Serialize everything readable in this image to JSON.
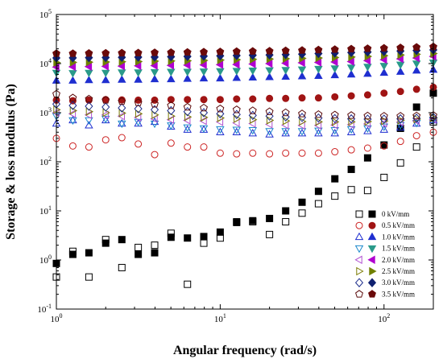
{
  "chart_data": {
    "type": "scatter",
    "title": "",
    "xlabel": "Angular frequency (rad/s)",
    "ylabel": "Storage & loss modulus (Pa)",
    "xscale": "log",
    "yscale": "log",
    "xlim": [
      1,
      200
    ],
    "ylim": [
      0.1,
      100000
    ],
    "xticks": [
      {
        "base": "10",
        "exp": "0"
      },
      {
        "base": "10",
        "exp": "1"
      },
      {
        "base": "10",
        "exp": "2"
      }
    ],
    "yticks": [
      {
        "base": "10",
        "exp": "-1"
      },
      {
        "base": "10",
        "exp": "0"
      },
      {
        "base": "10",
        "exp": "1"
      },
      {
        "base": "10",
        "exp": "2"
      },
      {
        "base": "10",
        "exp": "3"
      },
      {
        "base": "10",
        "exp": "4"
      },
      {
        "base": "10",
        "exp": "5"
      }
    ],
    "legend_position": "bottom-right",
    "x": [
      1.0,
      1.26,
      1.58,
      2.0,
      2.51,
      3.16,
      3.98,
      5.01,
      6.31,
      7.94,
      10.0,
      12.6,
      15.8,
      20.0,
      25.1,
      31.6,
      39.8,
      50.1,
      63.1,
      79.4,
      100,
      126,
      158,
      200
    ],
    "legend_labels": [
      "0 kV/mm",
      "0.5 kV/mm",
      "1.0 kV/mm",
      "1.5 kV/mm",
      "2.0 kV/mm",
      "2.5 kV/mm",
      "3.0 kV/mm",
      "3.5 kV/mm"
    ],
    "series": [
      {
        "field": "0 kV/mm",
        "kind": "loss",
        "marker": "square",
        "color": "#000000",
        "values": [
          0.45,
          1.5,
          0.45,
          2.6,
          0.7,
          1.8,
          2.0,
          3.5,
          0.32,
          2.2,
          2.8,
          5.8,
          6.0,
          3.3,
          6.0,
          9.0,
          14,
          20,
          27,
          26,
          48,
          95,
          200,
          650
        ]
      },
      {
        "field": "0 kV/mm",
        "kind": "storage",
        "marker": "square",
        "color": "#000000",
        "values": [
          0.85,
          1.3,
          1.4,
          2.2,
          2.6,
          1.3,
          1.4,
          2.9,
          2.8,
          3.0,
          3.7,
          6.0,
          6.3,
          7.0,
          10,
          15,
          25,
          45,
          70,
          120,
          220,
          480,
          1300,
          2500
        ]
      },
      {
        "field": "0.5 kV/mm",
        "kind": "loss",
        "marker": "circle",
        "color": "#cc2222",
        "values": [
          300,
          210,
          200,
          280,
          310,
          230,
          140,
          240,
          200,
          200,
          150,
          145,
          150,
          145,
          150,
          150,
          150,
          160,
          175,
          190,
          210,
          260,
          340,
          400
        ]
      },
      {
        "field": "0.5 kV/mm",
        "kind": "storage",
        "marker": "circle",
        "color": "#a01414",
        "values": [
          1800,
          1750,
          1800,
          1850,
          1820,
          1800,
          1800,
          1850,
          1850,
          1850,
          1850,
          1900,
          1900,
          1950,
          1950,
          2000,
          2000,
          2100,
          2200,
          2300,
          2500,
          2700,
          3000,
          3300
        ]
      },
      {
        "field": "1.0 kV/mm",
        "kind": "loss",
        "marker": "triangle-up",
        "color": "#1f2fd0",
        "values": [
          600,
          700,
          550,
          700,
          600,
          600,
          650,
          520,
          450,
          450,
          400,
          400,
          380,
          360,
          380,
          380,
          380,
          380,
          400,
          420,
          450,
          500,
          600,
          700
        ]
      },
      {
        "field": "1.0 kV/mm",
        "kind": "storage",
        "marker": "triangle-up",
        "color": "#1f2fd0",
        "values": [
          4500,
          4500,
          4600,
          4600,
          4700,
          4700,
          4800,
          4800,
          4900,
          5000,
          5000,
          5100,
          5200,
          5300,
          5400,
          5500,
          5600,
          5800,
          6000,
          6200,
          6500,
          6800,
          7200,
          7500
        ]
      },
      {
        "field": "1.5 kV/mm",
        "kind": "loss",
        "marker": "triangle-down",
        "color": "#1a88cc",
        "values": [
          850,
          700,
          700,
          750,
          600,
          650,
          600,
          550,
          500,
          480,
          460,
          450,
          440,
          420,
          420,
          420,
          430,
          440,
          460,
          480,
          520,
          560,
          620,
          700
        ]
      },
      {
        "field": "1.5 kV/mm",
        "kind": "storage",
        "marker": "triangle-down",
        "color": "#2a9a8a",
        "values": [
          6500,
          6400,
          6500,
          6500,
          6600,
          6600,
          6700,
          6800,
          6800,
          6900,
          7000,
          7100,
          7200,
          7300,
          7400,
          7600,
          7800,
          8000,
          8300,
          8600,
          9000,
          9500,
          10000,
          10500
        ]
      },
      {
        "field": "2.0 kV/mm",
        "kind": "loss",
        "marker": "triangle-left",
        "color": "#b050d0",
        "values": [
          1000,
          950,
          900,
          900,
          850,
          800,
          750,
          720,
          700,
          680,
          650,
          620,
          600,
          580,
          560,
          550,
          550,
          560,
          570,
          590,
          610,
          640,
          680,
          730
        ]
      },
      {
        "field": "2.0 kV/mm",
        "kind": "storage",
        "marker": "triangle-left",
        "color": "#b000d0",
        "values": [
          8500,
          8600,
          8700,
          8800,
          8900,
          9000,
          9100,
          9200,
          9300,
          9400,
          9500,
          9600,
          9800,
          10000,
          10200,
          10400,
          10600,
          10800,
          11000,
          11500,
          12000,
          12500,
          13000,
          14000
        ]
      },
      {
        "field": "2.5 kV/mm",
        "kind": "loss",
        "marker": "triangle-right",
        "color": "#7a7a00",
        "values": [
          1150,
          1100,
          1050,
          1000,
          980,
          950,
          900,
          850,
          820,
          800,
          780,
          750,
          720,
          700,
          680,
          660,
          650,
          650,
          650,
          660,
          680,
          700,
          740,
          780
        ]
      },
      {
        "field": "2.5 kV/mm",
        "kind": "storage",
        "marker": "triangle-right",
        "color": "#708000",
        "values": [
          10500,
          10600,
          10700,
          10800,
          10900,
          11000,
          11200,
          11300,
          11400,
          11600,
          11800,
          12000,
          12200,
          12400,
          12600,
          12800,
          13000,
          13300,
          13600,
          14000,
          14500,
          15000,
          15500,
          16000
        ]
      },
      {
        "field": "3.0 kV/mm",
        "kind": "loss",
        "marker": "diamond",
        "color": "#1a2a8a",
        "values": [
          1500,
          1400,
          1350,
          1300,
          1250,
          1200,
          1150,
          1100,
          1050,
          1000,
          950,
          920,
          880,
          850,
          820,
          800,
          780,
          760,
          750,
          740,
          740,
          750,
          770,
          800
        ]
      },
      {
        "field": "3.0 kV/mm",
        "kind": "storage",
        "marker": "diamond",
        "color": "#102070",
        "values": [
          13000,
          13100,
          13200,
          13300,
          13400,
          13500,
          13600,
          13800,
          14000,
          14200,
          14400,
          14600,
          14800,
          15000,
          15300,
          15600,
          16000,
          16400,
          16800,
          17200,
          17600,
          18000,
          18500,
          19000
        ]
      },
      {
        "field": "3.5 kV/mm",
        "kind": "loss",
        "marker": "pentagon",
        "color": "#5a0a0a",
        "values": [
          2400,
          2000,
          1900,
          1800,
          1700,
          1600,
          1500,
          1400,
          1300,
          1250,
          1200,
          1150,
          1100,
          1050,
          1000,
          950,
          920,
          900,
          880,
          860,
          850,
          850,
          860,
          880
        ]
      },
      {
        "field": "3.5 kV/mm",
        "kind": "storage",
        "marker": "pentagon",
        "color": "#6a0a0a",
        "values": [
          16000,
          16000,
          16200,
          16300,
          16400,
          16500,
          16700,
          16800,
          17000,
          17200,
          17400,
          17600,
          17800,
          18000,
          18300,
          18600,
          19000,
          19400,
          19800,
          20200,
          20600,
          21000,
          21500,
          22000
        ]
      }
    ]
  }
}
